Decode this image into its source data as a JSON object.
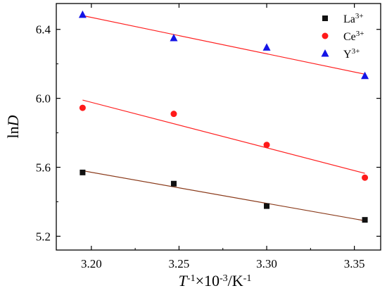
{
  "chart_data": {
    "type": "scatter",
    "xlabel": {
      "main": "T",
      "sup1": "-1",
      "mid": "×10",
      "sup2": "-3",
      "unit": "/K",
      "sup3": "-1"
    },
    "ylabel": {
      "pre": "ln",
      "italic": "D"
    },
    "xlim": [
      3.18,
      3.365
    ],
    "ylim": [
      5.12,
      6.55
    ],
    "xticks": [
      3.2,
      3.25,
      3.3,
      3.35
    ],
    "xtick_labels": [
      "3.20",
      "3.25",
      "3.30",
      "3.35"
    ],
    "yticks": [
      5.2,
      5.6,
      6.0,
      6.4
    ],
    "ytick_labels": [
      "5.2",
      "5.6",
      "6.0",
      "6.4"
    ],
    "legend_position": "top-right",
    "series": [
      {
        "name": "Y",
        "name_sup": "3+",
        "marker": "triangle",
        "color": "#1414e6",
        "line_color": "#ff2020",
        "x": [
          3.195,
          3.247,
          3.3,
          3.356
        ],
        "y": [
          6.485,
          6.35,
          6.295,
          6.13
        ],
        "fit": {
          "x": [
            3.195,
            3.356
          ],
          "y": [
            6.48,
            6.14
          ]
        }
      },
      {
        "name": "Ce",
        "name_sup": "3+",
        "marker": "circle",
        "color": "#ff1a1a",
        "line_color": "#ff2020",
        "x": [
          3.195,
          3.247,
          3.3,
          3.356
        ],
        "y": [
          5.945,
          5.91,
          5.73,
          5.54
        ],
        "fit": {
          "x": [
            3.195,
            3.356
          ],
          "y": [
            5.99,
            5.565
          ]
        }
      },
      {
        "name": "La",
        "name_sup": "3+",
        "marker": "square",
        "color": "#111111",
        "line_color": "#8a3a1a",
        "x": [
          3.195,
          3.247,
          3.3,
          3.356
        ],
        "y": [
          5.57,
          5.505,
          5.375,
          5.295
        ],
        "fit": {
          "x": [
            3.195,
            3.356
          ],
          "y": [
            5.58,
            5.29
          ]
        }
      }
    ],
    "legend_order": [
      "La",
      "Ce",
      "Y"
    ]
  }
}
